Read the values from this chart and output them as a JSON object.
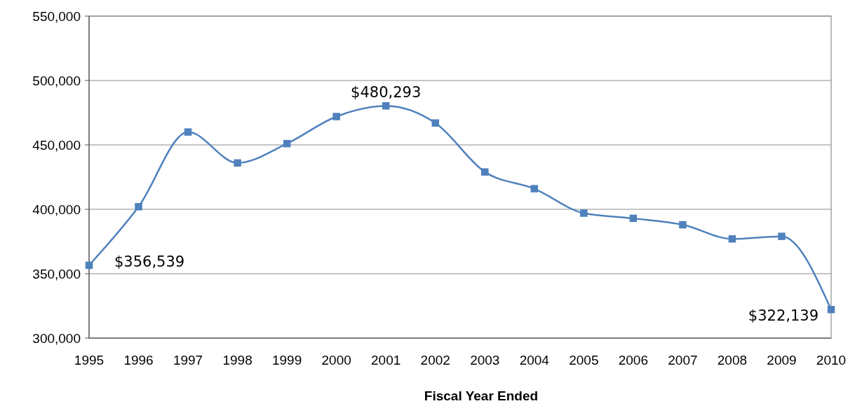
{
  "chart_data": {
    "type": "line",
    "xlabel": "Fiscal Year Ended",
    "categories": [
      "1995",
      "1996",
      "1997",
      "1998",
      "1999",
      "2000",
      "2001",
      "2002",
      "2003",
      "2004",
      "2005",
      "2006",
      "2007",
      "2008",
      "2009",
      "2010"
    ],
    "series": [
      {
        "color": "#4f81bd",
        "values": [
          356539,
          402000,
          460000,
          436000,
          451000,
          472000,
          480293,
          467000,
          429000,
          416000,
          397000,
          393000,
          388000,
          377000,
          379000,
          322139
        ],
        "value_labels": [
          "$356,539",
          null,
          null,
          null,
          null,
          null,
          "$480,293",
          null,
          null,
          null,
          null,
          null,
          null,
          null,
          null,
          "$322,139"
        ]
      }
    ],
    "ylim": [
      300000,
      550000
    ],
    "yticks": [
      {
        "value": 300000,
        "label": "300,000"
      },
      {
        "value": 350000,
        "label": "350,000"
      },
      {
        "value": 400000,
        "label": "400,000"
      },
      {
        "value": 450000,
        "label": "450,000"
      },
      {
        "value": 500000,
        "label": "500,000"
      },
      {
        "value": 550000,
        "label": "550,000"
      }
    ],
    "grid": "y",
    "marker": "square"
  }
}
